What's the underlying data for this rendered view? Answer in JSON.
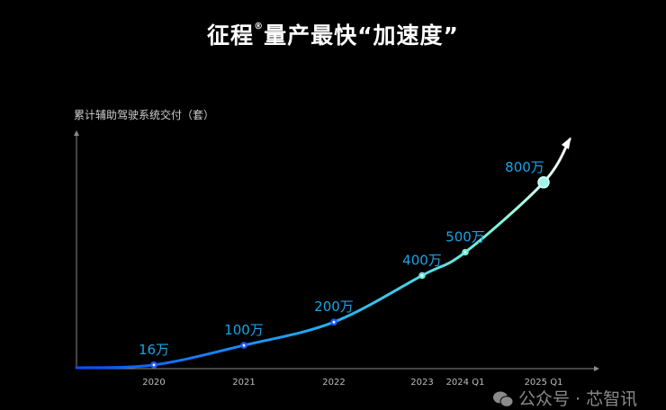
{
  "title": {
    "main": "征程",
    "mark": "®",
    "rest": "量产最快“加速度”"
  },
  "watermark": {
    "icon": "wechat-icon",
    "text": "公众号 · 芯智讯"
  },
  "chart_data": {
    "type": "line",
    "ylabel": "累计辅助驾驶系统交付（套）",
    "xlabel": "",
    "categories": [
      "2020",
      "2021",
      "2022",
      "2023",
      "2024 Q1",
      "2025 Q1"
    ],
    "values": [
      160000,
      1000000,
      2000000,
      4000000,
      5000000,
      8000000
    ],
    "data_labels": [
      "16万",
      "100万",
      "200万",
      "400万",
      "500万",
      "800万"
    ],
    "ylim": [
      0,
      10000000
    ],
    "grid": false,
    "y_ticks_shown": false,
    "trend_arrow": true,
    "colors": {
      "start": "#0a4cff",
      "mid": "#25b8f0",
      "end": "#7ff5d8",
      "label": "#1aa3e8",
      "axis": "#8a8a8a"
    }
  }
}
